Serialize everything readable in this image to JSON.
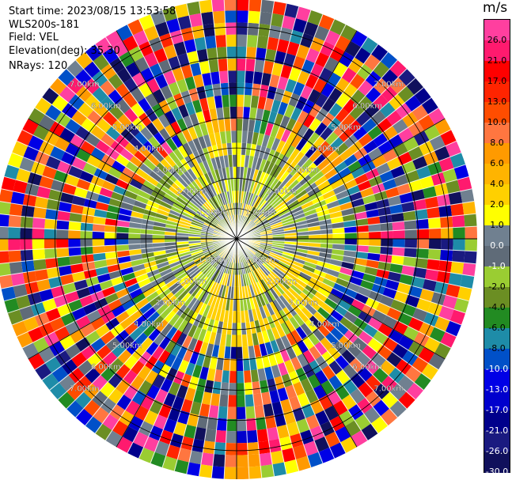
{
  "header": {
    "start_time": "Start time: 2023/08/15 13:53:58",
    "instrument": "WLS200s-181",
    "field": "Field: VEL",
    "elevation": "Elevation(deg): 35.30",
    "nrays": "NRays: 120"
  },
  "colorbar": {
    "unit": "m/s",
    "ticks": [
      "26.0",
      "21.0",
      "17.0",
      "13.0",
      "10.0",
      "8.0",
      "6.0",
      "4.0",
      "2.0",
      "1.0",
      "0.0",
      "-1.0",
      "-2.0",
      "-4.0",
      "-6.0",
      "-8.0",
      "-10.0",
      "-13.0",
      "-17.0",
      "-21.0",
      "-26.0",
      "-30.0"
    ],
    "colors": [
      "#ff3f9f",
      "#ff1a6e",
      "#ff0000",
      "#ff2400",
      "#ff4d00",
      "#ff7640",
      "#ff9a00",
      "#ffb400",
      "#ffd000",
      "#ffff00",
      "#708090",
      "#5f6b78",
      "#9acd32",
      "#6b8e23",
      "#228b22",
      "#1e8ca8",
      "#0050c8",
      "#0000e6",
      "#0000cd",
      "#00008b",
      "#1a1a80",
      "#10105c"
    ]
  },
  "range_labels": [
    "1.00km",
    "2.00km",
    "3.00km",
    "4.00km",
    "5.00km",
    "6.00km",
    "7.00km"
  ]
}
